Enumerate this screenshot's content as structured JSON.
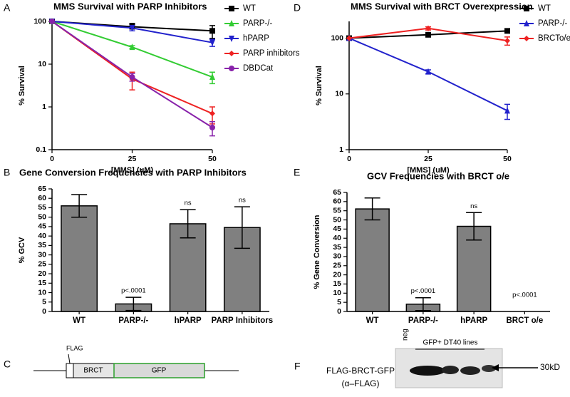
{
  "chart_data": [
    {
      "type": "line",
      "panel_label": "A",
      "title": "MMS Survival with PARP Inhibitors",
      "x_label": "[MMS] (uM)",
      "y_label": "% Survival",
      "x": [
        0,
        25,
        50
      ],
      "xlim": [
        0,
        50
      ],
      "xticks": [
        0,
        25,
        50
      ],
      "ylim": [
        0.1,
        100
      ],
      "yticks": [
        0.1,
        1,
        10,
        100
      ],
      "log_y": true,
      "legend": "outside-right",
      "series": [
        {
          "name": "WT",
          "color": "#000000",
          "marker": "square",
          "values": [
            100,
            75,
            60
          ],
          "errors": [
            0,
            15,
            20
          ]
        },
        {
          "name": "PARP-/-",
          "color": "#33cc33",
          "marker": "triangle",
          "values": [
            100,
            25,
            5
          ],
          "errors": [
            0,
            2,
            1.5
          ]
        },
        {
          "name": "hPARP",
          "color": "#2222cc",
          "marker": "triangle-down",
          "values": [
            100,
            70,
            32
          ],
          "errors": [
            0,
            10,
            6
          ]
        },
        {
          "name": "PARP inhibitors",
          "color": "#ee2222",
          "marker": "diamond",
          "values": [
            100,
            4.5,
            0.7
          ],
          "errors": [
            0,
            2,
            0.3
          ]
        },
        {
          "name": "DBDCat",
          "color": "#8822aa",
          "marker": "circle",
          "values": [
            100,
            5,
            0.33
          ],
          "errors": [
            0,
            1,
            0.12
          ]
        }
      ]
    },
    {
      "type": "line",
      "panel_label": "D",
      "title": "MMS Survival with BRCT Overexpression",
      "x_label": "[MMS] (uM)",
      "y_label": "% Survival",
      "x": [
        0,
        25,
        50
      ],
      "xlim": [
        0,
        50
      ],
      "xticks": [
        0,
        25,
        50
      ],
      "ylim": [
        1,
        200
      ],
      "yticks": [
        1,
        10,
        100
      ],
      "log_y": true,
      "legend": "outside-right",
      "series": [
        {
          "name": "WT",
          "color": "#000000",
          "marker": "square",
          "values": [
            100,
            115,
            135
          ],
          "errors": [
            0,
            8,
            8
          ]
        },
        {
          "name": "PARP-/-",
          "color": "#2222cc",
          "marker": "triangle",
          "values": [
            100,
            25,
            5
          ],
          "errors": [
            0,
            2,
            1.5
          ]
        },
        {
          "name": "BRCTo/e",
          "color": "#ee2222",
          "marker": "diamond",
          "values": [
            100,
            150,
            90
          ],
          "errors": [
            0,
            10,
            15
          ]
        }
      ]
    },
    {
      "type": "bar",
      "panel_label": "B",
      "title": "Gene Conversion Frequencies with PARP Inhibitors",
      "y_label": "% GCV",
      "color": "#808080",
      "categories": [
        "WT",
        "PARP-/-",
        "hPARP",
        "PARP Inhibitors"
      ],
      "values": [
        56,
        4,
        46.5,
        44.5
      ],
      "errors": [
        6,
        3.5,
        7.5,
        11
      ],
      "annotations": [
        null,
        "p<.0001",
        "ns",
        "ns"
      ],
      "ylim": [
        0,
        65
      ],
      "yticks": [
        0,
        5,
        10,
        15,
        20,
        25,
        30,
        35,
        40,
        45,
        50,
        55,
        60,
        65
      ]
    },
    {
      "type": "bar",
      "panel_label": "E",
      "title": "GCV Frequencies with BRCT o/e",
      "y_label": "% Gene Conversion",
      "color": "#808080",
      "categories": [
        "WT",
        "PARP-/-",
        "hPARP",
        "BRCT o/e"
      ],
      "values": [
        56,
        4,
        46.5,
        0
      ],
      "errors": [
        6,
        3.5,
        7.5,
        0
      ],
      "annotations": [
        null,
        "p<.0001",
        "ns",
        "p<.0001"
      ],
      "ylim": [
        0,
        65
      ],
      "yticks": [
        0,
        5,
        10,
        15,
        20,
        25,
        30,
        35,
        40,
        45,
        50,
        55,
        60,
        65
      ]
    }
  ],
  "diagram": {
    "panel_label": "C",
    "tag": "FLAG",
    "domain": "BRCT",
    "reporter": "GFP"
  },
  "blot": {
    "panel_label": "F",
    "lane_neg": "neg",
    "lane_group": "GFP+ DT40 lines",
    "size": "30kD",
    "protein": "FLAG-BRCT-GFP",
    "antibody": "(α–FLAG)"
  }
}
